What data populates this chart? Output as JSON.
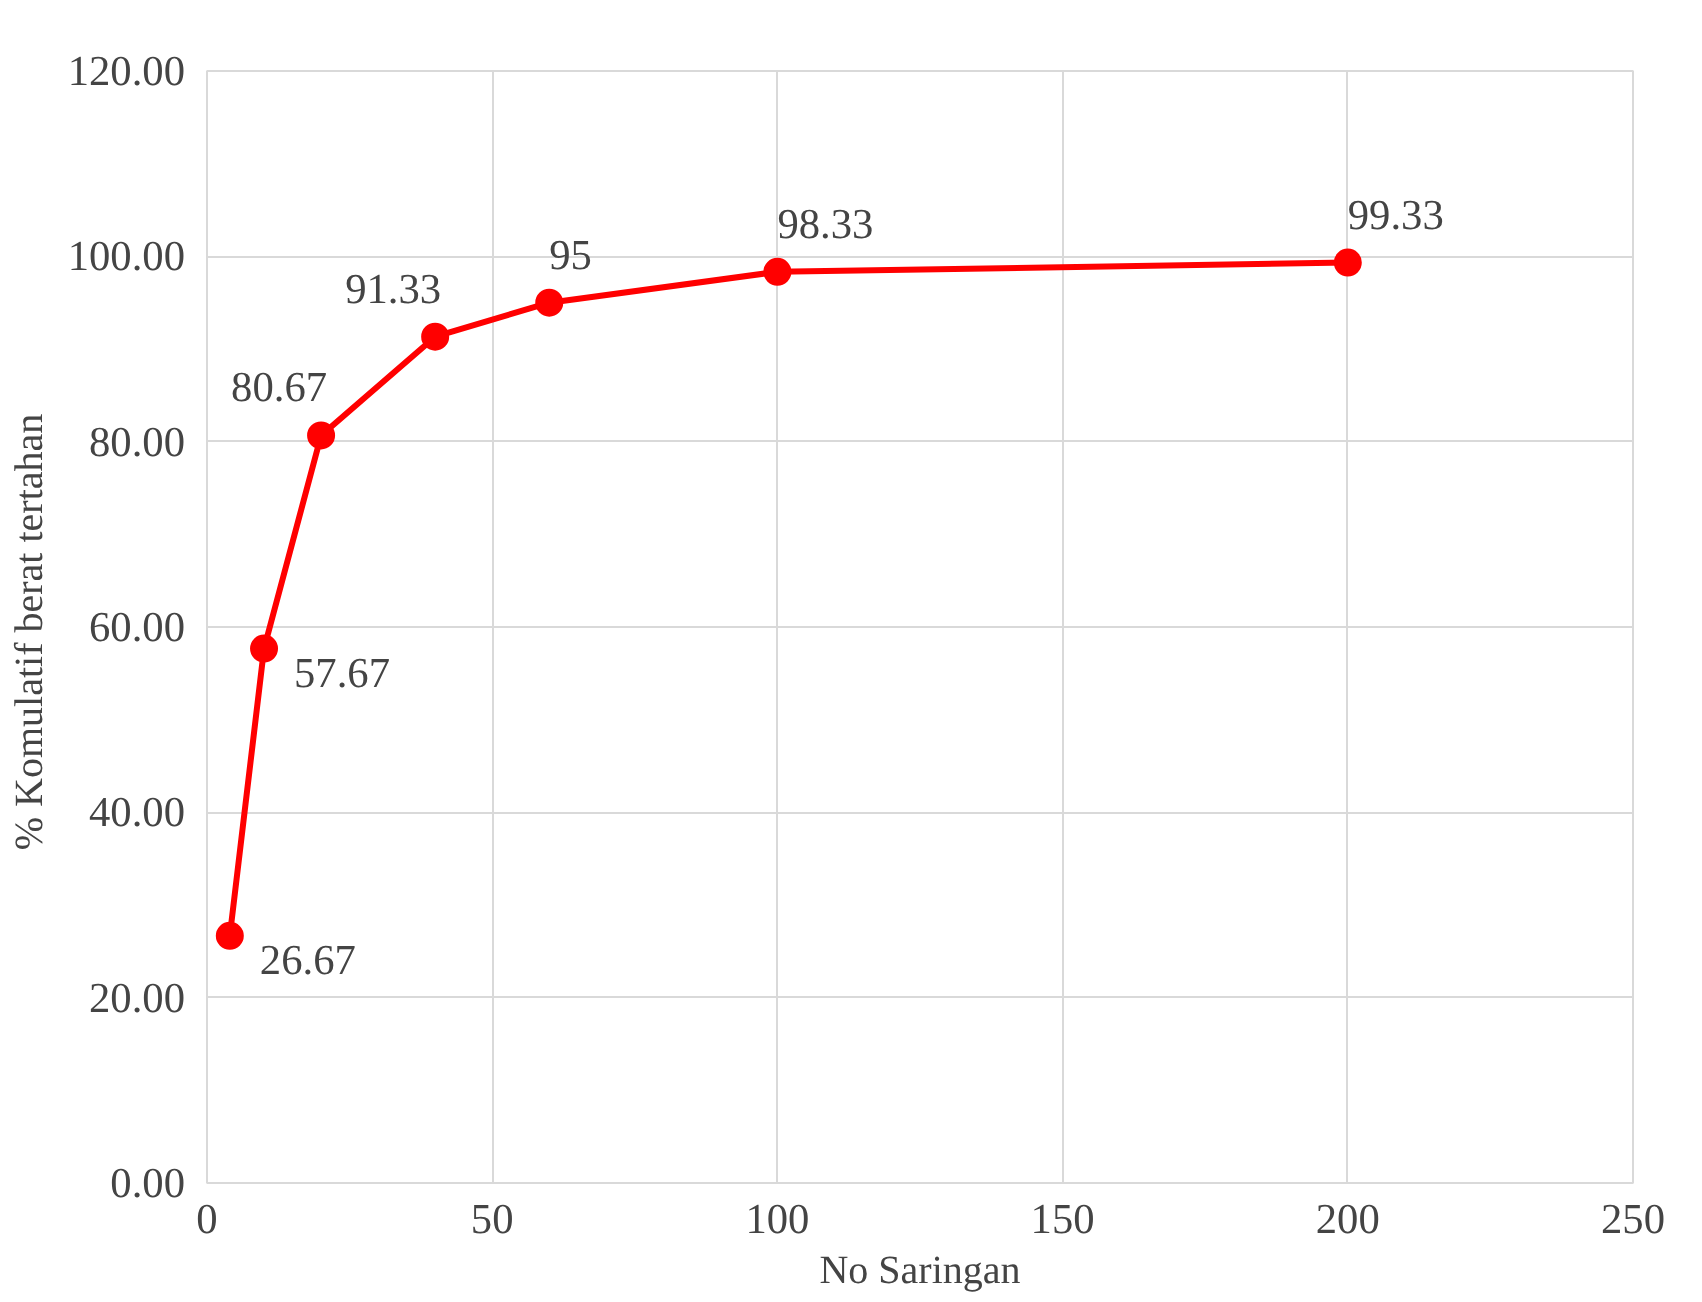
{
  "chart_data": {
    "type": "line",
    "xlabel": "No Saringan",
    "ylabel": "% Komulatif  berat tertahan",
    "x": [
      4,
      10,
      20,
      40,
      60,
      100,
      200
    ],
    "series": [
      {
        "color": "#ff0000",
        "values": [
          26.67,
          57.67,
          80.67,
          91.33,
          95,
          98.33,
          99.33
        ]
      }
    ],
    "xlim": [
      0,
      250
    ],
    "xticks": [
      0,
      50,
      100,
      150,
      200,
      250
    ],
    "ylim": [
      0,
      120
    ],
    "yticks": [
      {
        "value": 0,
        "label": "0.00"
      },
      {
        "value": 20,
        "label": "20.00"
      },
      {
        "value": 40,
        "label": "40.00"
      },
      {
        "value": 60,
        "label": "60.00"
      },
      {
        "value": 80,
        "label": "80.00"
      },
      {
        "value": 100,
        "label": "100.00"
      },
      {
        "value": 120,
        "label": "120.00"
      }
    ],
    "grid": true,
    "marker": "circle",
    "line_style": "solid",
    "data_labels": true
  }
}
